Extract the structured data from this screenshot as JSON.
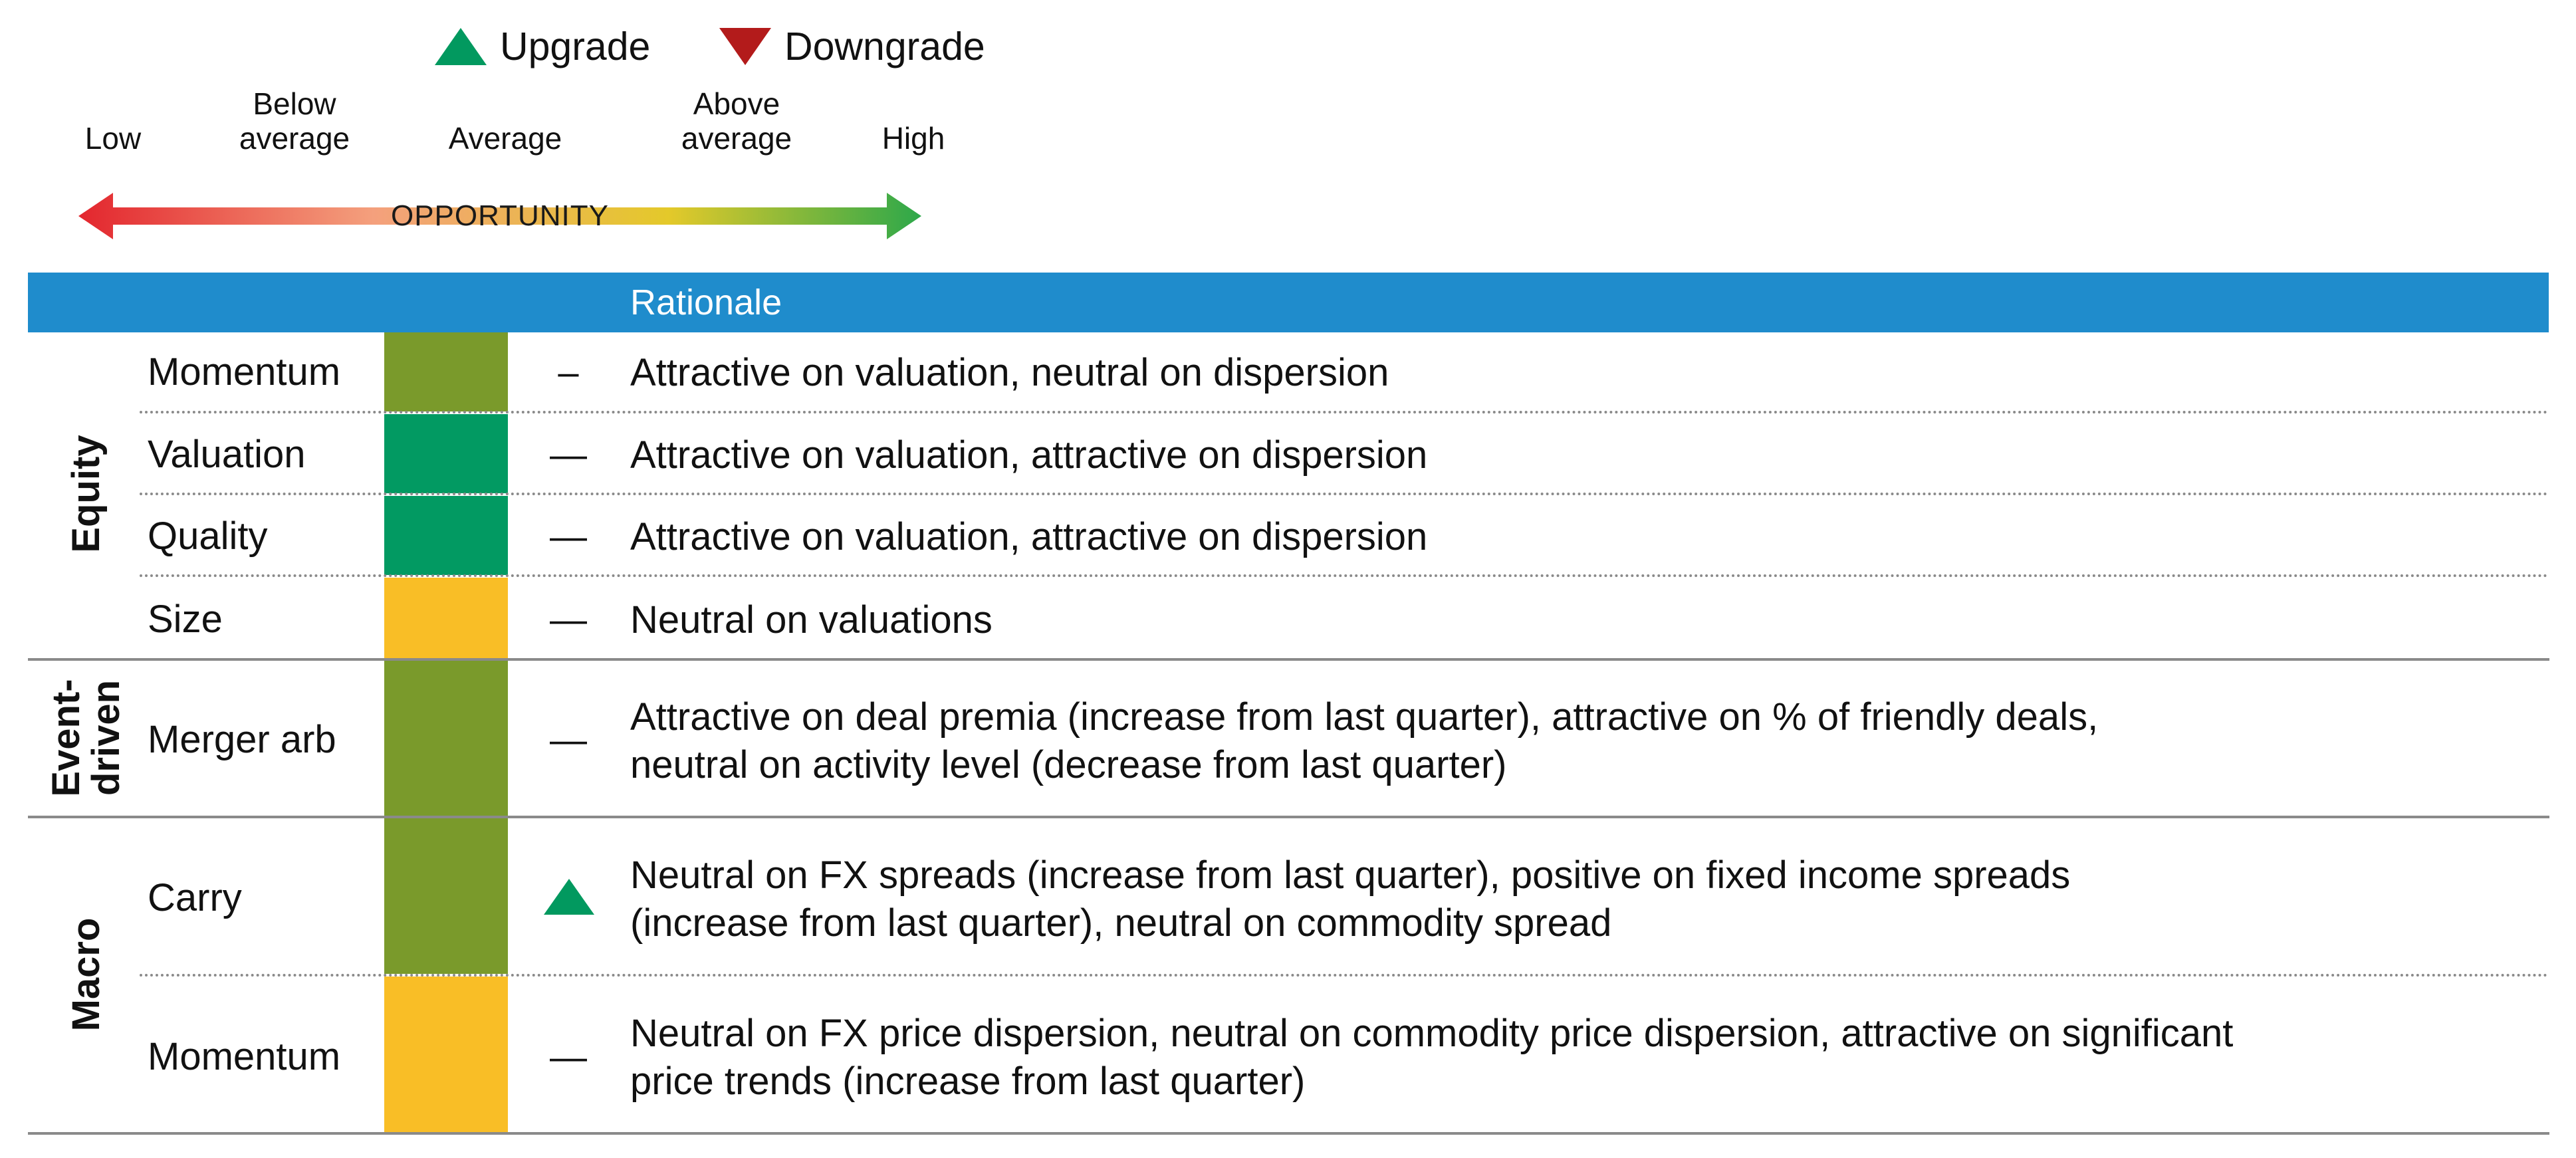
{
  "legend": {
    "upgrade_label": "Upgrade",
    "downgrade_label": "Downgrade",
    "upgrade_color": "#02995f",
    "downgrade_color": "#b31b1b"
  },
  "scale": {
    "low": "Low",
    "below_average": "Below average",
    "average": "Average",
    "above_average": "Above average",
    "high": "High",
    "arrow_label": "OPPORTUNITY",
    "gradient_colors": [
      "#e3262e",
      "#f4a07d",
      "#e4c92a",
      "#2da84a"
    ]
  },
  "table": {
    "header_color": "#1f8ccc",
    "rationale_header": "Rationale",
    "groups": [
      {
        "label": "Equity"
      },
      {
        "label_line1": "Event-",
        "label_line2": "driven"
      },
      {
        "label": "Macro"
      }
    ],
    "rows": [
      {
        "group": "Equity",
        "factor": "Momentum",
        "rating_color": "#7a9a2b",
        "change": "–",
        "rationale": [
          "Attractive on valuation, neutral on dispersion"
        ]
      },
      {
        "group": "Equity",
        "factor": "Valuation",
        "rating_color": "#029a62",
        "change": "—",
        "rationale": [
          "Attractive on valuation, attractive on dispersion"
        ]
      },
      {
        "group": "Equity",
        "factor": "Quality",
        "rating_color": "#029a62",
        "change": "—",
        "rationale": [
          "Attractive on valuation, attractive on dispersion"
        ]
      },
      {
        "group": "Equity",
        "factor": "Size",
        "rating_color": "#f9be26",
        "change": "—",
        "rationale": [
          "Neutral on valuations"
        ]
      },
      {
        "group": "Event-driven",
        "factor": "Merger arb",
        "rating_color": "#7a9a2b",
        "change": "—",
        "rationale": [
          "Attractive on deal premia (increase from last quarter), attractive on % of friendly deals,",
          "neutral on activity level (decrease from last quarter)"
        ]
      },
      {
        "group": "Macro",
        "factor": "Carry",
        "rating_color": "#7a9a2b",
        "change": "upgrade-icon",
        "rationale": [
          "Neutral on FX spreads (increase from last quarter), positive on fixed income spreads",
          "(increase from last quarter), neutral on commodity spread"
        ]
      },
      {
        "group": "Macro",
        "factor": "Momentum",
        "rating_color": "#f9be26",
        "change": "—",
        "rationale": [
          "Neutral on FX price dispersion, neutral on commodity price dispersion, attractive on significant",
          "price trends (increase from last quarter)"
        ]
      }
    ]
  }
}
